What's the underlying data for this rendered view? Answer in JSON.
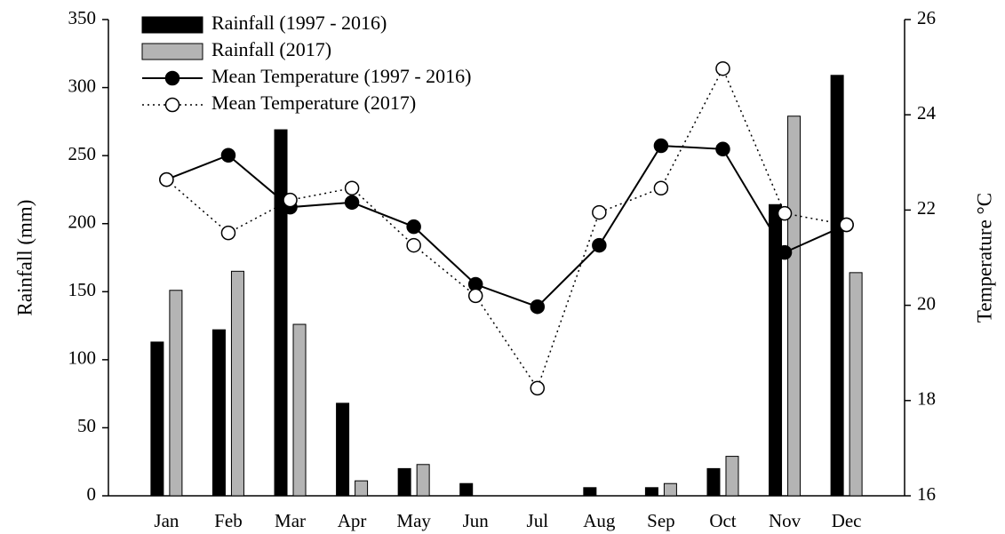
{
  "chart_data": {
    "type": "bar",
    "categories": [
      "Jan",
      "Feb",
      "Mar",
      "Apr",
      "May",
      "Jun",
      "Jul",
      "Aug",
      "Sep",
      "Oct",
      "Nov",
      "Dec"
    ],
    "ylabel": "Rainfall (mm)",
    "y2label": "Temperature °C",
    "ylim": [
      0,
      350
    ],
    "yticks": [
      0,
      50,
      100,
      150,
      200,
      250,
      300,
      350
    ],
    "y2lim": [
      16,
      26
    ],
    "y2ticks": [
      16,
      18,
      20,
      22,
      24,
      26
    ],
    "legend": "upper left",
    "series": [
      {
        "name": "Rainfall (1997 - 2016)",
        "type": "bar",
        "color": "#000000",
        "values": [
          113,
          122,
          269,
          68,
          20,
          9,
          0,
          6,
          6,
          20,
          214,
          309
        ]
      },
      {
        "name": "Rainfall (2017)",
        "type": "bar",
        "color": "#b4b4b4",
        "values": [
          151,
          165,
          126,
          11,
          23,
          0,
          0,
          0,
          9,
          29,
          279,
          164
        ]
      },
      {
        "name": "Mean Temperature (1997 - 2016)",
        "type": "line",
        "axis": "y2",
        "color": "#000000",
        "marker": "filled",
        "linestyle": "solid",
        "values": [
          22.64,
          23.15,
          22.06,
          22.16,
          21.65,
          20.44,
          19.97,
          21.26,
          23.35,
          23.28,
          21.11,
          21.69
        ]
      },
      {
        "name": "Mean Temperature (2017)",
        "type": "line",
        "axis": "y2",
        "color": "#000000",
        "marker": "open",
        "linestyle": "dotted",
        "values": [
          22.64,
          21.52,
          22.21,
          22.46,
          21.26,
          20.2,
          18.26,
          21.95,
          22.46,
          24.97,
          21.93,
          21.69
        ]
      }
    ]
  }
}
